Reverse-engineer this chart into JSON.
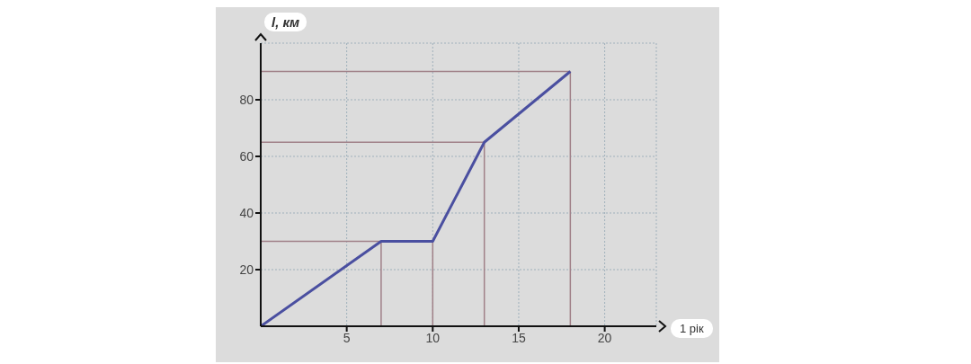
{
  "chart_data": {
    "type": "line",
    "xlabel": "1 рік",
    "ylabel": "l, км",
    "x": [
      0,
      7,
      10,
      13,
      18
    ],
    "series": [
      {
        "color": "#4a4fa0",
        "values": [
          0,
          30,
          30,
          65,
          90
        ]
      }
    ],
    "xlim": [
      0,
      23
    ],
    "ylim": [
      0,
      100
    ],
    "xticks": [
      5,
      10,
      15,
      20
    ],
    "yticks": [
      20,
      40,
      60,
      80
    ],
    "grid": true,
    "marker": "none",
    "line_style": "solid",
    "ref_lines": [
      {
        "axis": "y",
        "value": 30,
        "color": "#a08088"
      },
      {
        "axis": "y",
        "value": 65,
        "color": "#a08088"
      },
      {
        "axis": "y",
        "value": 90,
        "color": "#a08088"
      },
      {
        "axis": "x",
        "value": 7,
        "color": "#a08088"
      },
      {
        "axis": "x",
        "value": 10,
        "color": "#a08088"
      },
      {
        "axis": "x",
        "value": 13,
        "color": "#a08088"
      },
      {
        "axis": "x",
        "value": 18,
        "color": "#a08088"
      }
    ]
  }
}
